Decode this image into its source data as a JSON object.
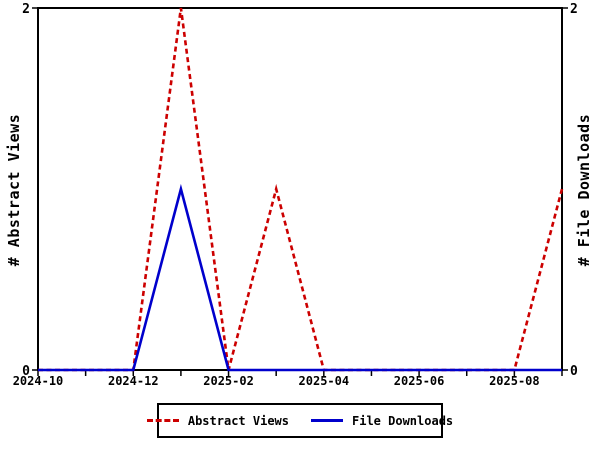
{
  "chart_data": {
    "type": "line",
    "x": [
      "2024-10",
      "2024-11",
      "2024-12",
      "2025-01",
      "2025-02",
      "2025-03",
      "2025-04",
      "2025-05",
      "2025-06",
      "2025-07",
      "2025-08",
      "2025-09"
    ],
    "series": [
      {
        "name": "Abstract Views",
        "style": "dashed",
        "color": "#cc0000",
        "values": [
          0,
          0,
          0,
          2,
          0,
          1,
          0,
          0,
          0,
          0,
          0,
          1
        ]
      },
      {
        "name": "File Downloads",
        "style": "solid",
        "color": "#0000cc",
        "values": [
          0,
          0,
          0,
          1,
          0,
          0,
          0,
          0,
          0,
          0,
          0,
          0
        ]
      }
    ],
    "x_tick_labels": [
      "2024-10",
      "2024-12",
      "2025-02",
      "2025-04",
      "2025-06",
      "2025-08"
    ],
    "y_ticks": [
      0,
      2
    ],
    "ylim": [
      0,
      2
    ],
    "left_axis_label": "# Abstract Views",
    "right_axis_label": "# File Downloads",
    "grid": false,
    "legend_position": "bottom",
    "axis_color": "#000000",
    "background_color": "#ffffff"
  }
}
